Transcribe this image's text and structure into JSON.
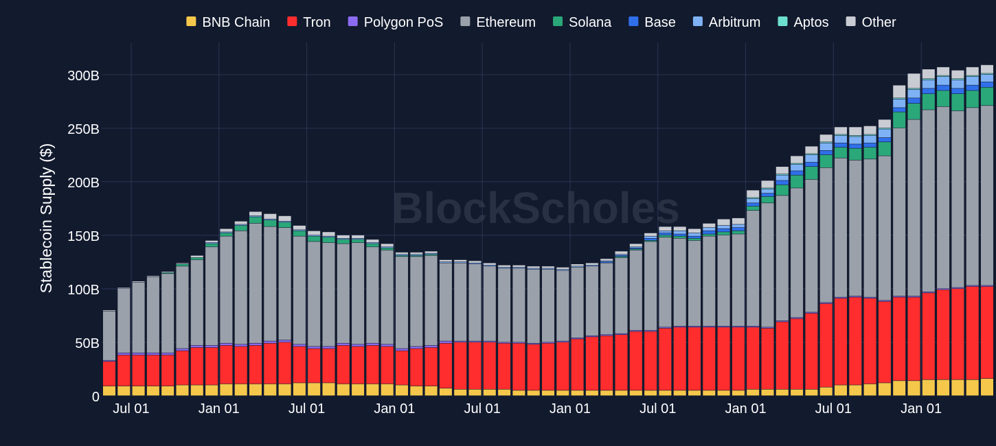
{
  "chart_data": {
    "type": "bar",
    "stacked": true,
    "title": "",
    "xlabel": "",
    "ylabel": "Stablecoin Supply ($)",
    "ylim": [
      0,
      330
    ],
    "yunit": "B",
    "yticks": [
      0,
      50,
      100,
      150,
      200,
      250,
      300
    ],
    "ytick_labels": [
      "0",
      "50B",
      "100B",
      "150B",
      "200B",
      "250B",
      "300B"
    ],
    "xtick_labels": [
      {
        "label": "Jul 01",
        "bar_index": 1
      },
      {
        "label": "Jan 01",
        "bar_index": 7
      },
      {
        "label": "Jul 01",
        "bar_index": 13
      },
      {
        "label": "Jan 01",
        "bar_index": 19
      },
      {
        "label": "Jul 01",
        "bar_index": 25
      },
      {
        "label": "Jan 01",
        "bar_index": 31
      },
      {
        "label": "Jul 01",
        "bar_index": 37
      },
      {
        "label": "Jan 01",
        "bar_index": 43
      },
      {
        "label": "Jul 01",
        "bar_index": 49
      },
      {
        "label": "Jan 01",
        "bar_index": 55
      }
    ],
    "bar_count": 61,
    "watermark": "BlockScholes",
    "legend_position": "top",
    "series": [
      {
        "name": "BNB Chain",
        "color": "#f5c84b",
        "values": [
          9,
          9,
          9,
          9,
          9,
          10,
          10,
          10,
          11,
          11,
          11,
          11,
          11,
          12,
          12,
          12,
          11,
          11,
          11,
          11,
          10,
          9,
          9,
          7,
          6,
          6,
          6,
          6,
          5,
          5,
          5,
          5,
          5,
          5,
          5,
          5,
          5,
          5,
          5,
          5,
          5,
          5,
          5,
          5,
          6,
          6,
          6,
          6,
          6,
          8,
          10,
          10,
          11,
          12,
          14,
          14,
          15,
          15,
          15,
          15,
          16
        ]
      },
      {
        "name": "Tron",
        "color": "#ff2d2d",
        "values": [
          23,
          29,
          29,
          29,
          29,
          32,
          35,
          35,
          36,
          35,
          36,
          38,
          39,
          34,
          32,
          32,
          36,
          35,
          36,
          35,
          32,
          35,
          36,
          42,
          44,
          44,
          44,
          43,
          44,
          43,
          44,
          45,
          48,
          50,
          51,
          52,
          55,
          55,
          58,
          59,
          59,
          59,
          59,
          59,
          58,
          57,
          63,
          66,
          71,
          78,
          81,
          82,
          80,
          76,
          78,
          78,
          81,
          84,
          85,
          87,
          86
        ]
      },
      {
        "name": "Polygon PoS",
        "color": "#8b6cf0",
        "values": [
          1,
          2,
          2,
          2,
          2,
          2,
          2,
          2,
          2,
          2,
          2,
          2,
          2,
          2,
          2,
          2,
          2,
          2,
          2,
          2,
          2,
          2,
          2,
          2,
          1,
          1,
          1,
          1,
          1,
          1,
          1,
          1,
          1,
          1,
          1,
          1,
          1,
          1,
          1,
          1,
          1,
          1,
          1,
          1,
          1,
          1,
          1,
          1,
          1,
          1,
          1,
          1,
          1,
          1,
          1,
          1,
          1,
          1,
          1,
          1,
          1
        ]
      },
      {
        "name": "Ethereum",
        "color": "#9aa1ab",
        "values": [
          46,
          60,
          66,
          71,
          74,
          77,
          80,
          92,
          100,
          106,
          112,
          107,
          105,
          101,
          98,
          97,
          93,
          95,
          90,
          88,
          86,
          84,
          84,
          73,
          73,
          72,
          70,
          69,
          69,
          69,
          68,
          66,
          66,
          65,
          67,
          71,
          75,
          83,
          84,
          82,
          80,
          84,
          85,
          86,
          108,
          116,
          117,
          121,
          124,
          126,
          130,
          127,
          129,
          135,
          157,
          165,
          170,
          170,
          165,
          166,
          168
        ]
      },
      {
        "name": "Solana",
        "color": "#2aa879",
        "values": [
          0,
          0,
          0,
          0,
          1,
          2,
          2,
          3,
          3,
          5,
          6,
          6,
          5,
          5,
          5,
          5,
          4,
          3,
          3,
          2,
          1,
          1,
          1,
          0,
          0,
          0,
          0,
          0,
          0,
          0,
          0,
          0,
          0,
          0,
          0,
          1,
          1,
          1,
          2,
          2,
          2,
          2,
          3,
          3,
          4,
          6,
          10,
          12,
          12,
          12,
          10,
          11,
          11,
          13,
          15,
          15,
          15,
          15,
          16,
          16,
          17
        ]
      },
      {
        "name": "Base",
        "color": "#2f6fea",
        "values": [
          0,
          0,
          0,
          0,
          0,
          0,
          0,
          0,
          0,
          0,
          0,
          0,
          0,
          0,
          0,
          0,
          0,
          0,
          0,
          0,
          0,
          0,
          0,
          0,
          0,
          0,
          0,
          0,
          0,
          0,
          0,
          0,
          0,
          0,
          1,
          1,
          1,
          2,
          2,
          2,
          2,
          3,
          3,
          3,
          3,
          3,
          4,
          4,
          4,
          4,
          4,
          4,
          4,
          4,
          4,
          5,
          5,
          5,
          5,
          5,
          5
        ]
      },
      {
        "name": "Arbitrum",
        "color": "#7fb2f5",
        "values": [
          0,
          0,
          0,
          0,
          0,
          0,
          0,
          1,
          1,
          1,
          1,
          1,
          1,
          1,
          1,
          1,
          1,
          1,
          1,
          1,
          1,
          1,
          1,
          1,
          1,
          1,
          1,
          1,
          1,
          1,
          1,
          1,
          1,
          1,
          1,
          1,
          1,
          2,
          2,
          3,
          3,
          3,
          3,
          3,
          4,
          4,
          5,
          6,
          7,
          7,
          7,
          7,
          7,
          8,
          8,
          8,
          8,
          8,
          8,
          8,
          7
        ]
      },
      {
        "name": "Aptos",
        "color": "#6ee0d0",
        "values": [
          0,
          0,
          0,
          0,
          0,
          0,
          0,
          0,
          0,
          0,
          0,
          0,
          0,
          0,
          0,
          0,
          0,
          0,
          0,
          0,
          0,
          0,
          0,
          0,
          0,
          0,
          0,
          0,
          0,
          0,
          0,
          0,
          0,
          0,
          0,
          0,
          0,
          0,
          0,
          0,
          0,
          0,
          0,
          0,
          1,
          1,
          1,
          1,
          1,
          1,
          1,
          1,
          1,
          1,
          1,
          1,
          1,
          1,
          1,
          1,
          1
        ]
      },
      {
        "name": "Other",
        "color": "#c9ccd2",
        "values": [
          1,
          1,
          1,
          1,
          1,
          1,
          2,
          2,
          3,
          3,
          4,
          5,
          5,
          4,
          4,
          4,
          3,
          3,
          3,
          3,
          2,
          2,
          2,
          2,
          2,
          2,
          2,
          2,
          2,
          2,
          2,
          2,
          2,
          2,
          2,
          3,
          3,
          3,
          4,
          4,
          4,
          4,
          6,
          6,
          7,
          7,
          7,
          7,
          7,
          7,
          7,
          8,
          8,
          8,
          12,
          14,
          9,
          8,
          8,
          8,
          8
        ]
      }
    ]
  }
}
